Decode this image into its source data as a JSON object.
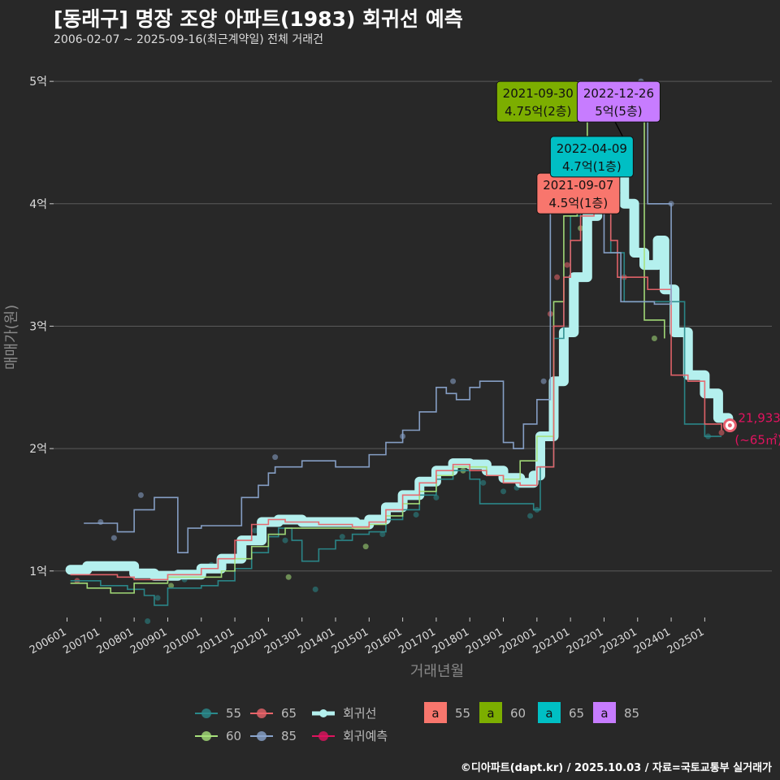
{
  "title": "[동래구] 명장 조양 아파트(1983) 회귀선 예측",
  "subtitle": "2006-02-07 ~ 2025-09-16(최근계약일) 전체 거래건",
  "caption": "©디아파트(dapt.kr) / 2025.10.03 / 자료=국토교통부 실거래가",
  "colors": {
    "background": "#282828",
    "grid": "#5a5a5a",
    "s55": "#2a8a8c",
    "s60": "#a6e07a",
    "s65": "#e8646a",
    "s85": "#8aa4cc",
    "trend": "#b4f0ee",
    "forecast": "#e0135f",
    "label55": "#f8766d",
    "label60": "#7cae00",
    "label65": "#00bfc4",
    "label85": "#c77cff"
  },
  "chart_data": {
    "type": "line",
    "xlabel": "거래년월",
    "ylabel": "매매가(원)",
    "x_ticks": [
      "200601",
      "200701",
      "200801",
      "200901",
      "201001",
      "201101",
      "201201",
      "201301",
      "201401",
      "201501",
      "201601",
      "201701",
      "201801",
      "201901",
      "202001",
      "202101",
      "202201",
      "202301",
      "202401",
      "202501"
    ],
    "y_ticks": [
      {
        "value": 1,
        "label": "1억"
      },
      {
        "value": 2,
        "label": "2억"
      },
      {
        "value": 3,
        "label": "3억"
      },
      {
        "value": 4,
        "label": "4억"
      },
      {
        "value": 5,
        "label": "5억"
      }
    ],
    "xlim": [
      2005.6,
      2027.0
    ],
    "ylim": [
      0.62,
      5.2
    ],
    "grid": true,
    "series": [
      {
        "name": "55",
        "color_key": "s55",
        "points": [
          [
            2006.1,
            0.92
          ],
          [
            2007.0,
            0.88
          ],
          [
            2007.8,
            0.85
          ],
          [
            2008.3,
            0.8
          ],
          [
            2008.6,
            0.72
          ],
          [
            2009.0,
            0.86
          ],
          [
            2010.0,
            0.88
          ],
          [
            2010.5,
            0.92
          ],
          [
            2011.0,
            1.02
          ],
          [
            2011.5,
            1.15
          ],
          [
            2012.0,
            1.28
          ],
          [
            2012.3,
            1.35
          ],
          [
            2012.7,
            1.25
          ],
          [
            2013.0,
            1.08
          ],
          [
            2013.5,
            1.18
          ],
          [
            2014.0,
            1.25
          ],
          [
            2014.5,
            1.3
          ],
          [
            2015.0,
            1.32
          ],
          [
            2015.5,
            1.42
          ],
          [
            2016.0,
            1.5
          ],
          [
            2016.5,
            1.62
          ],
          [
            2017.0,
            1.75
          ],
          [
            2017.5,
            1.82
          ],
          [
            2018.0,
            1.75
          ],
          [
            2018.3,
            1.55
          ],
          [
            2018.6,
            1.55
          ],
          [
            2019.6,
            1.55
          ],
          [
            2019.9,
            1.5
          ],
          [
            2020.1,
            1.85
          ],
          [
            2020.5,
            2.9
          ],
          [
            2020.8,
            3.4
          ],
          [
            2021.0,
            3.9
          ],
          [
            2021.3,
            4.2
          ],
          [
            2021.6,
            4.5
          ],
          [
            2022.0,
            4.3
          ],
          [
            2022.2,
            3.6
          ],
          [
            2022.6,
            3.2
          ],
          [
            2023.3,
            3.2
          ],
          [
            2024.4,
            2.2
          ],
          [
            2025.0,
            2.1
          ],
          [
            2025.5,
            2.1
          ]
        ]
      },
      {
        "name": "60",
        "color_key": "s60",
        "points": [
          [
            2006.1,
            0.9
          ],
          [
            2006.6,
            0.86
          ],
          [
            2007.3,
            0.82
          ],
          [
            2008.0,
            0.9
          ],
          [
            2009.0,
            0.95
          ],
          [
            2010.0,
            0.95
          ],
          [
            2010.6,
            1.0
          ],
          [
            2011.0,
            1.1
          ],
          [
            2011.5,
            1.2
          ],
          [
            2012.0,
            1.3
          ],
          [
            2012.5,
            1.35
          ],
          [
            2013.0,
            1.35
          ],
          [
            2014.0,
            1.35
          ],
          [
            2015.0,
            1.38
          ],
          [
            2015.5,
            1.45
          ],
          [
            2016.0,
            1.55
          ],
          [
            2016.5,
            1.65
          ],
          [
            2017.0,
            1.78
          ],
          [
            2017.5,
            1.85
          ],
          [
            2018.0,
            1.85
          ],
          [
            2018.5,
            1.78
          ],
          [
            2019.0,
            1.75
          ],
          [
            2019.5,
            1.9
          ],
          [
            2020.0,
            2.1
          ],
          [
            2020.5,
            3.2
          ],
          [
            2020.8,
            3.9
          ],
          [
            2021.2,
            4.5
          ],
          [
            2021.5,
            4.75
          ],
          [
            2021.8,
            4.75
          ],
          [
            2023.2,
            3.05
          ],
          [
            2023.8,
            2.9
          ]
        ]
      },
      {
        "name": "65",
        "color_key": "s65",
        "points": [
          [
            2006.1,
            0.97
          ],
          [
            2006.8,
            0.97
          ],
          [
            2007.5,
            0.95
          ],
          [
            2008.0,
            0.93
          ],
          [
            2009.0,
            0.97
          ],
          [
            2010.0,
            1.02
          ],
          [
            2010.5,
            1.1
          ],
          [
            2011.0,
            1.25
          ],
          [
            2011.5,
            1.38
          ],
          [
            2012.0,
            1.42
          ],
          [
            2012.5,
            1.4
          ],
          [
            2013.0,
            1.4
          ],
          [
            2013.5,
            1.38
          ],
          [
            2014.0,
            1.38
          ],
          [
            2014.5,
            1.36
          ],
          [
            2015.0,
            1.4
          ],
          [
            2015.5,
            1.5
          ],
          [
            2016.0,
            1.62
          ],
          [
            2016.5,
            1.72
          ],
          [
            2017.0,
            1.82
          ],
          [
            2017.5,
            1.87
          ],
          [
            2018.0,
            1.82
          ],
          [
            2018.5,
            1.78
          ],
          [
            2019.0,
            1.72
          ],
          [
            2019.5,
            1.7
          ],
          [
            2020.0,
            1.85
          ],
          [
            2020.5,
            3.0
          ],
          [
            2020.8,
            3.4
          ],
          [
            2021.0,
            3.7
          ],
          [
            2021.3,
            3.9
          ],
          [
            2021.7,
            4.45
          ],
          [
            2022.0,
            4.4
          ],
          [
            2022.2,
            3.7
          ],
          [
            2022.4,
            3.4
          ],
          [
            2022.7,
            3.4
          ],
          [
            2023.3,
            3.3
          ],
          [
            2024.0,
            2.6
          ],
          [
            2024.5,
            2.55
          ],
          [
            2025.0,
            2.2
          ],
          [
            2025.5,
            2.15
          ]
        ]
      },
      {
        "name": "85",
        "color_key": "s85",
        "points": [
          [
            2006.5,
            1.39
          ],
          [
            2007.0,
            1.39
          ],
          [
            2007.5,
            1.32
          ],
          [
            2008.0,
            1.5
          ],
          [
            2008.6,
            1.6
          ],
          [
            2009.3,
            1.15
          ],
          [
            2009.6,
            1.35
          ],
          [
            2010.0,
            1.37
          ],
          [
            2011.2,
            1.6
          ],
          [
            2011.7,
            1.7
          ],
          [
            2012.0,
            1.8
          ],
          [
            2012.2,
            1.85
          ],
          [
            2013.0,
            1.9
          ],
          [
            2013.5,
            1.9
          ],
          [
            2014.0,
            1.85
          ],
          [
            2014.5,
            1.85
          ],
          [
            2015.0,
            1.95
          ],
          [
            2015.5,
            2.05
          ],
          [
            2016.0,
            2.15
          ],
          [
            2016.5,
            2.3
          ],
          [
            2017.0,
            2.5
          ],
          [
            2017.3,
            2.45
          ],
          [
            2017.6,
            2.4
          ],
          [
            2018.0,
            2.5
          ],
          [
            2018.3,
            2.55
          ],
          [
            2019.0,
            2.05
          ],
          [
            2019.3,
            2.0
          ],
          [
            2019.6,
            2.2
          ],
          [
            2020.0,
            2.4
          ],
          [
            2020.4,
            4.0
          ],
          [
            2021.0,
            4.0
          ],
          [
            2022.0,
            3.6
          ],
          [
            2022.5,
            3.2
          ],
          [
            2023.5,
            3.18
          ],
          [
            2024.0,
            4.0
          ],
          [
            2023.3,
            5.0
          ]
        ]
      },
      {
        "name": "회귀선",
        "color_key": "trend",
        "points": [
          [
            2006.1,
            1.01
          ],
          [
            2006.6,
            1.04
          ],
          [
            2007.3,
            1.04
          ],
          [
            2008.0,
            0.98
          ],
          [
            2008.6,
            0.96
          ],
          [
            2009.3,
            0.97
          ],
          [
            2010.0,
            1.02
          ],
          [
            2010.6,
            1.1
          ],
          [
            2011.2,
            1.25
          ],
          [
            2011.8,
            1.4
          ],
          [
            2012.3,
            1.42
          ],
          [
            2013.0,
            1.4
          ],
          [
            2013.5,
            1.4
          ],
          [
            2014.0,
            1.4
          ],
          [
            2014.6,
            1.38
          ],
          [
            2015.0,
            1.42
          ],
          [
            2015.5,
            1.52
          ],
          [
            2016.0,
            1.62
          ],
          [
            2016.5,
            1.73
          ],
          [
            2017.0,
            1.82
          ],
          [
            2017.5,
            1.88
          ],
          [
            2018.0,
            1.87
          ],
          [
            2018.5,
            1.82
          ],
          [
            2019.0,
            1.76
          ],
          [
            2019.5,
            1.72
          ],
          [
            2019.9,
            1.78
          ],
          [
            2020.1,
            2.1
          ],
          [
            2020.5,
            2.55
          ],
          [
            2020.8,
            2.95
          ],
          [
            2021.1,
            3.4
          ],
          [
            2021.5,
            3.9
          ],
          [
            2021.8,
            4.2
          ],
          [
            2022.0,
            4.4
          ],
          [
            2022.3,
            4.4
          ],
          [
            2022.6,
            4.0
          ],
          [
            2022.9,
            3.6
          ],
          [
            2023.2,
            3.5
          ],
          [
            2023.6,
            3.7
          ],
          [
            2023.8,
            3.3
          ],
          [
            2024.1,
            2.95
          ],
          [
            2024.5,
            2.6
          ],
          [
            2025.0,
            2.45
          ],
          [
            2025.4,
            2.25
          ],
          [
            2025.7,
            2.2
          ]
        ]
      }
    ],
    "scatter_points": [
      [
        2006.3,
        0.92,
        "s65"
      ],
      [
        2007.0,
        1.4,
        "s85"
      ],
      [
        2007.4,
        1.27,
        "s85"
      ],
      [
        2008.2,
        1.62,
        "s85"
      ],
      [
        2008.4,
        0.59,
        "s55"
      ],
      [
        2008.7,
        0.78,
        "s55"
      ],
      [
        2009.1,
        0.88,
        "s60"
      ],
      [
        2009.5,
        0.93,
        "s55"
      ],
      [
        2010.3,
        1.05,
        "s55"
      ],
      [
        2011.0,
        1.08,
        "s60"
      ],
      [
        2011.6,
        1.33,
        "s55"
      ],
      [
        2012.2,
        1.93,
        "s85"
      ],
      [
        2012.5,
        1.25,
        "s55"
      ],
      [
        2012.6,
        0.95,
        "s60"
      ],
      [
        2013.4,
        0.85,
        "s55"
      ],
      [
        2013.8,
        1.4,
        "s85"
      ],
      [
        2014.2,
        1.28,
        "s55"
      ],
      [
        2014.9,
        1.2,
        "s60"
      ],
      [
        2015.4,
        1.3,
        "s55"
      ],
      [
        2016.0,
        2.1,
        "s85"
      ],
      [
        2016.4,
        1.46,
        "s55"
      ],
      [
        2017.0,
        1.6,
        "s55"
      ],
      [
        2017.5,
        2.55,
        "s85"
      ],
      [
        2017.8,
        1.82,
        "s60"
      ],
      [
        2018.4,
        1.72,
        "s55"
      ],
      [
        2019.0,
        1.65,
        "s55"
      ],
      [
        2019.4,
        1.68,
        "s55"
      ],
      [
        2019.8,
        1.45,
        "s55"
      ],
      [
        2020.0,
        1.5,
        "s55"
      ],
      [
        2020.2,
        2.55,
        "s85"
      ],
      [
        2020.4,
        3.1,
        "s65"
      ],
      [
        2020.6,
        3.4,
        "s65"
      ],
      [
        2020.9,
        3.5,
        "s65"
      ],
      [
        2021.1,
        4.0,
        "s65"
      ],
      [
        2021.3,
        3.8,
        "s60"
      ],
      [
        2021.7,
        4.5,
        "s55"
      ],
      [
        2022.1,
        4.1,
        "s65"
      ],
      [
        2022.6,
        3.4,
        "s65"
      ],
      [
        2023.1,
        5.0,
        "s85"
      ],
      [
        2023.5,
        2.9,
        "s60"
      ],
      [
        2024.0,
        4.0,
        "s85"
      ],
      [
        2025.1,
        2.1,
        "s55"
      ],
      [
        2025.5,
        2.13,
        "s65"
      ]
    ],
    "forecast": {
      "name": "회귀예측",
      "color_key": "forecast",
      "point": [
        2025.75,
        2.19
      ],
      "text1": "21,933",
      "text2": "(~65㎡)"
    },
    "annotations": [
      {
        "date": "2021-09-07",
        "price": "4.5억(1층)",
        "color_key": "label55",
        "point": [
          2021.68,
          4.5
        ],
        "box_at": [
          2020.0,
          4.25
        ]
      },
      {
        "date": "2021-09-30",
        "price": "4.75억(2층)",
        "color_key": "label60",
        "point": [
          2021.75,
          4.75
        ],
        "box_at": [
          2018.8,
          5.0
        ]
      },
      {
        "date": "2022-04-09",
        "price": "4.7억(1층)",
        "color_key": "label65",
        "point": [
          2022.27,
          4.7
        ],
        "box_at": [
          2020.4,
          4.55
        ]
      },
      {
        "date": "2022-12-26",
        "price": "5억(5층)",
        "color_key": "label85",
        "point": [
          2022.98,
          5.0
        ],
        "box_at": [
          2021.2,
          5.0
        ]
      }
    ],
    "legend": {
      "position": "bottom",
      "line_items": [
        {
          "label": "55",
          "color_key": "s55",
          "kind": "line"
        },
        {
          "label": "65",
          "color_key": "s65",
          "kind": "line"
        },
        {
          "label": "회귀선",
          "color_key": "trend",
          "kind": "trend"
        },
        {
          "label": "60",
          "color_key": "s60",
          "kind": "line"
        },
        {
          "label": "85",
          "color_key": "s85",
          "kind": "line"
        },
        {
          "label": "회귀예측",
          "color_key": "forecast",
          "kind": "forecast"
        }
      ],
      "box_items": [
        {
          "label": "55",
          "glyph": "a",
          "color_key": "label55"
        },
        {
          "label": "60",
          "glyph": "a",
          "color_key": "label60"
        },
        {
          "label": "65",
          "glyph": "a",
          "color_key": "label65"
        },
        {
          "label": "85",
          "glyph": "a",
          "color_key": "label85"
        }
      ]
    }
  }
}
